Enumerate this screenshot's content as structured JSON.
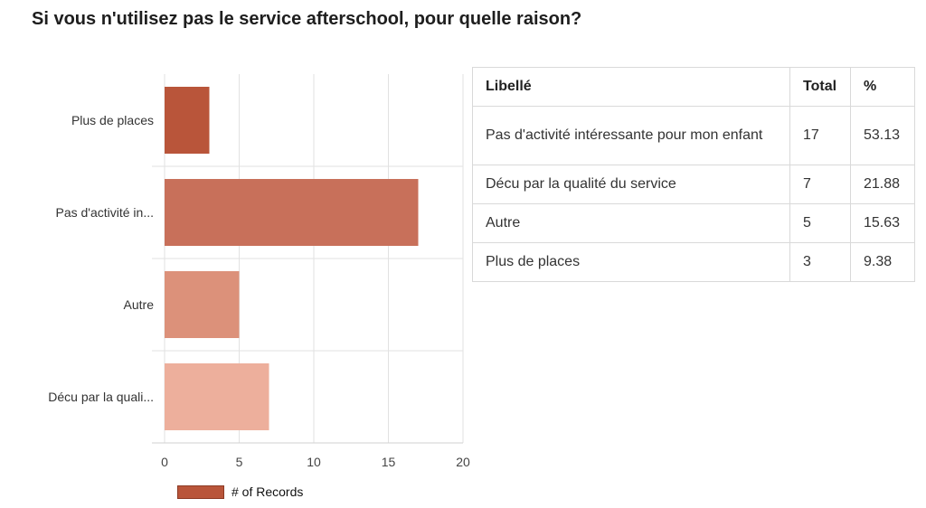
{
  "title": "Si vous n'utilisez pas le service afterschool, pour quelle raison?",
  "chart_data": {
    "type": "bar",
    "orientation": "horizontal",
    "categories": [
      "Plus de places",
      "Pas d'activité in...",
      "Autre",
      "Décu par la quali..."
    ],
    "values": [
      3,
      17,
      5,
      7
    ],
    "bar_colors": [
      "#b9553a",
      "#c8705a",
      "#dc917a",
      "#edaf9c"
    ],
    "xlim": [
      0,
      20
    ],
    "xticks": [
      0,
      5,
      10,
      15,
      20
    ],
    "xlabel": "",
    "ylabel": "",
    "grid": true,
    "legend": {
      "position": "bottom-left",
      "entries": [
        {
          "label": "# of Records",
          "color": "#b9553a"
        }
      ]
    }
  },
  "table": {
    "headers": [
      "Libellé",
      "Total",
      "%"
    ],
    "rows": [
      [
        "Pas d'activité intéressante pour mon enfant",
        "17",
        "53.13"
      ],
      [
        "Décu par la qualité du service",
        "7",
        "21.88"
      ],
      [
        "Autre",
        "5",
        "15.63"
      ],
      [
        "Plus de places",
        "3",
        "9.38"
      ]
    ]
  }
}
